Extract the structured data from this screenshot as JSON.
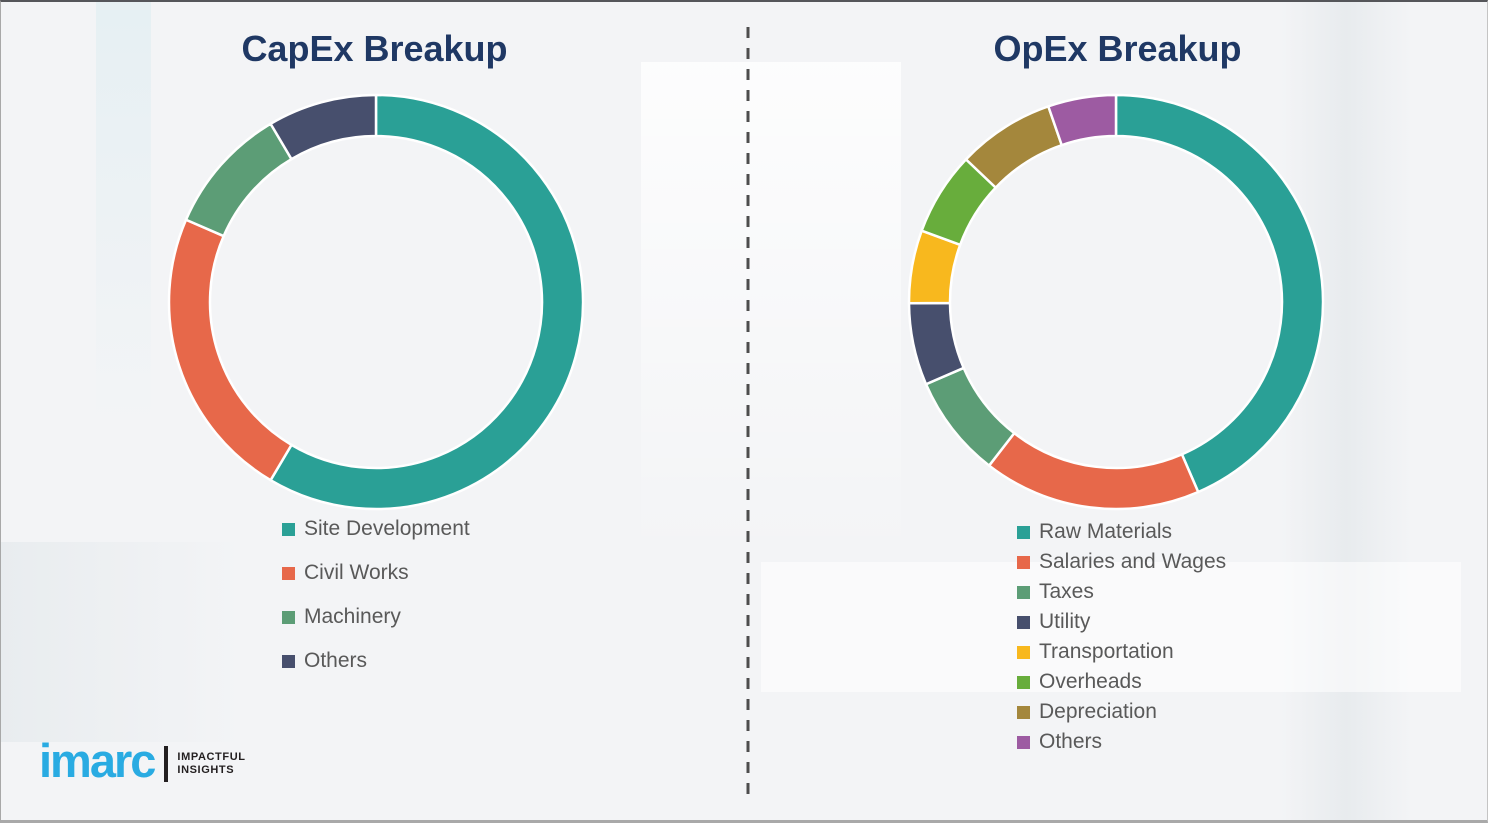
{
  "theme": {
    "background": "#f3f4f6",
    "title_color": "#1f3864",
    "legend_text_color": "#595959",
    "divider_color": "#4d4d4d",
    "logo_blue": "#29abe2",
    "logo_black": "#231f20"
  },
  "logo": {
    "brand": "imarc",
    "tagline_line1": "IMPACTFUL",
    "tagline_line2": "INSIGHTS"
  },
  "chart_data": [
    {
      "type": "pie",
      "donut": true,
      "title": "CapEx Breakup",
      "categories": [
        "Site Development",
        "Civil Works",
        "Machinery",
        "Others"
      ],
      "values": [
        58.5,
        23,
        10,
        8.5
      ],
      "colors": [
        "#2aa096",
        "#e7684a",
        "#5c9d76",
        "#474f6d"
      ],
      "units": "percent",
      "start_angle": "top",
      "direction": "clockwise",
      "legend_position": "below-left"
    },
    {
      "type": "pie",
      "donut": true,
      "title": "OpEx Breakup",
      "categories": [
        "Raw Materials",
        "Salaries and Wages",
        "Taxes",
        "Utility",
        "Transportation",
        "Overheads",
        "Depreciation",
        "Others"
      ],
      "values": [
        43.5,
        17,
        8,
        6.4,
        5.7,
        6.5,
        7.6,
        5.3
      ],
      "colors": [
        "#2aa096",
        "#e7684a",
        "#5c9d76",
        "#474f6d",
        "#f8b81e",
        "#68ad3c",
        "#a4873c",
        "#9d5ba2"
      ],
      "units": "percent",
      "start_angle": "top",
      "direction": "clockwise",
      "legend_position": "below-left"
    }
  ]
}
